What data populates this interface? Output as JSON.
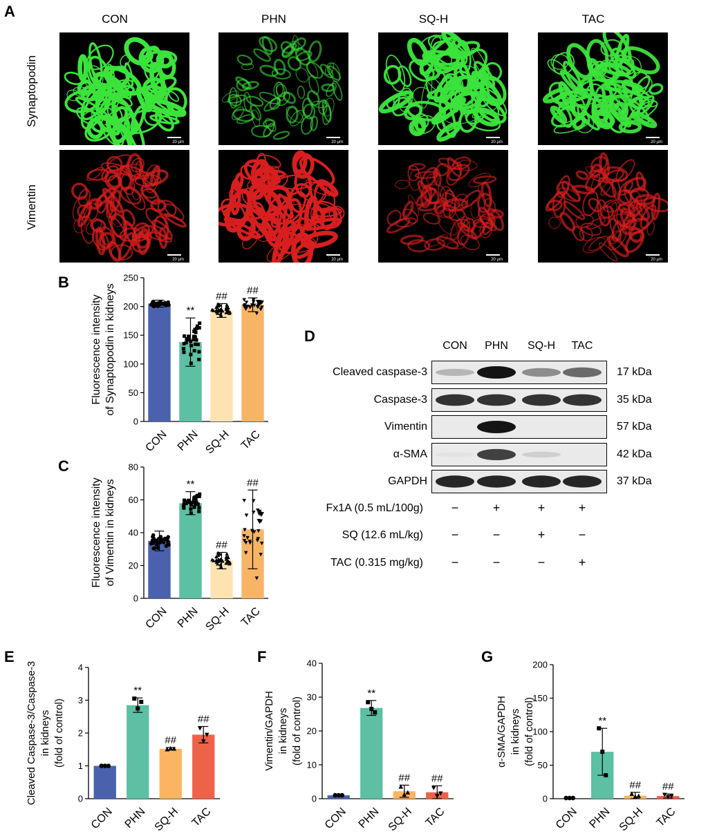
{
  "panel_A": {
    "label": "A",
    "columns": [
      "CON",
      "PHN",
      "SQ-H",
      "TAC"
    ],
    "rows": [
      "Synaptopodin",
      "Vimentin"
    ],
    "scale_text": "20 μm",
    "colors": {
      "synaptopodin": "#3be33b",
      "vimentin": "#d81e1e"
    },
    "intensity": {
      "synaptopodin": [
        1.0,
        0.35,
        0.95,
        0.9
      ],
      "vimentin": [
        0.6,
        1.0,
        0.45,
        0.5
      ]
    }
  },
  "panel_D": {
    "label": "D",
    "lanes": [
      "CON",
      "PHN",
      "SQ-H",
      "TAC"
    ],
    "blots": [
      {
        "name": "Cleaved caspase-3",
        "kda": "17 kDa",
        "intensity": [
          0.35,
          1.0,
          0.55,
          0.7
        ]
      },
      {
        "name": "Caspase-3",
        "kda": "35 kDa",
        "intensity": [
          0.9,
          0.9,
          0.9,
          0.9
        ]
      },
      {
        "name": "Vimentin",
        "kda": "57 kDa",
        "intensity": [
          0.0,
          1.0,
          0.0,
          0.0
        ]
      },
      {
        "name": "α-SMA",
        "kda": "42 kDa",
        "intensity": [
          0.05,
          0.85,
          0.2,
          0.0
        ]
      },
      {
        "name": "GAPDH",
        "kda": "37 kDa",
        "intensity": [
          0.95,
          0.95,
          0.95,
          0.95
        ]
      }
    ],
    "treatments": [
      {
        "name": "Fx1A (0.5 mL/100g)",
        "signs": [
          "−",
          "+",
          "+",
          "+"
        ]
      },
      {
        "name": "SQ (12.6 mL/kg)",
        "signs": [
          "−",
          "−",
          "+",
          "−"
        ]
      },
      {
        "name": "TAC (0.315 mg/kg)",
        "signs": [
          "−",
          "−",
          "−",
          "+"
        ]
      }
    ]
  },
  "chart_data": [
    {
      "id": "B",
      "label": "B",
      "type": "bar",
      "categories": [
        "CON",
        "PHN",
        "SQ-H",
        "TAC"
      ],
      "values": [
        205,
        138,
        193,
        203
      ],
      "errors": [
        6,
        42,
        12,
        12
      ],
      "ylabel": [
        "Fluorescence intensity",
        "of Synaptopodin in kidneys"
      ],
      "ylim": [
        0,
        250
      ],
      "yticks": [
        0,
        50,
        100,
        150,
        200,
        250
      ],
      "annotations": [
        "",
        "**",
        "##",
        "##"
      ],
      "colors": [
        "#4a62ad",
        "#5dbfa3",
        "#fde3b0",
        "#f8b465"
      ],
      "markers": [
        "circle",
        "square",
        "triangle",
        "triangle-down"
      ],
      "points_per_group": 30
    },
    {
      "id": "C",
      "label": "C",
      "type": "bar",
      "categories": [
        "CON",
        "PHN",
        "SQ-H",
        "TAC"
      ],
      "values": [
        35,
        58,
        23,
        42
      ],
      "errors": [
        6,
        7,
        5,
        24
      ],
      "ylabel": [
        "Fluorescence intensity",
        "of Vimentin in kidneys"
      ],
      "ylim": [
        0,
        80
      ],
      "yticks": [
        0,
        20,
        40,
        60,
        80
      ],
      "annotations": [
        "",
        "**",
        "##",
        "##"
      ],
      "colors": [
        "#4a62ad",
        "#5dbfa3",
        "#fde3b0",
        "#f8b465"
      ],
      "markers": [
        "circle",
        "square",
        "triangle",
        "triangle-down"
      ],
      "points_per_group": 30
    },
    {
      "id": "E",
      "label": "E",
      "type": "bar",
      "categories": [
        "CON",
        "PHN",
        "SQ-H",
        "TAC"
      ],
      "values": [
        1.0,
        2.85,
        1.52,
        1.95
      ],
      "errors": [
        0.01,
        0.22,
        0.04,
        0.25
      ],
      "points": [
        [
          1.0,
          1.0,
          1.0
        ],
        [
          3.05,
          2.75,
          2.95
        ],
        [
          1.5,
          1.53,
          1.52
        ],
        [
          2.15,
          1.75,
          1.95
        ]
      ],
      "ylabel": [
        "Cleaved Caspase-3/Caspase-3",
        "in kidneys",
        "(fold of control)"
      ],
      "ylim": [
        0,
        4
      ],
      "yticks": [
        0,
        1,
        2,
        3,
        4
      ],
      "annotations": [
        "",
        "**",
        "##",
        "##"
      ],
      "colors": [
        "#4a62ad",
        "#5dbfa3",
        "#fbb562",
        "#ee624a"
      ],
      "markers": [
        "circle",
        "square",
        "triangle",
        "triangle-down"
      ]
    },
    {
      "id": "F",
      "label": "F",
      "type": "bar",
      "categories": [
        "CON",
        "PHN",
        "SQ-H",
        "TAC"
      ],
      "values": [
        1.0,
        26.8,
        2.2,
        1.9
      ],
      "errors": [
        0.1,
        2.2,
        1.8,
        1.9
      ],
      "points": [
        [
          1.0,
          1.0,
          1.0
        ],
        [
          28.5,
          26.5,
          25.5
        ],
        [
          3.5,
          1.2,
          1.8
        ],
        [
          3.2,
          0.8,
          1.6
        ]
      ],
      "ylabel": [
        "Vimentin/GAPDH",
        "in kidneys",
        "(fold of control)"
      ],
      "ylim": [
        0,
        40
      ],
      "yticks": [
        0,
        10,
        20,
        30,
        40
      ],
      "annotations": [
        "",
        "**",
        "##",
        "##"
      ],
      "colors": [
        "#4a62ad",
        "#5dbfa3",
        "#fbb562",
        "#ee624a"
      ],
      "markers": [
        "circle",
        "square",
        "triangle",
        "triangle-down"
      ]
    },
    {
      "id": "G",
      "label": "G",
      "type": "bar",
      "categories": [
        "CON",
        "PHN",
        "SQ-H",
        "TAC"
      ],
      "values": [
        1.0,
        70,
        4.5,
        4.0
      ],
      "errors": [
        0.2,
        35,
        5,
        3
      ],
      "points": [
        [
          1.0,
          1.0,
          1.0
        ],
        [
          105,
          70,
          35
        ],
        [
          7,
          3,
          4
        ],
        [
          6,
          2.5,
          4
        ]
      ],
      "ylabel": [
        "α-SMA/GAPDH",
        "in kidneys",
        "(fold of control)"
      ],
      "ylim": [
        0,
        200
      ],
      "yticks": [
        0,
        50,
        100,
        150,
        200
      ],
      "annotations": [
        "",
        "**",
        "##",
        "##"
      ],
      "colors": [
        "#4a62ad",
        "#5dbfa3",
        "#fbb562",
        "#ee624a"
      ],
      "markers": [
        "circle",
        "square",
        "triangle",
        "triangle-down"
      ]
    }
  ]
}
